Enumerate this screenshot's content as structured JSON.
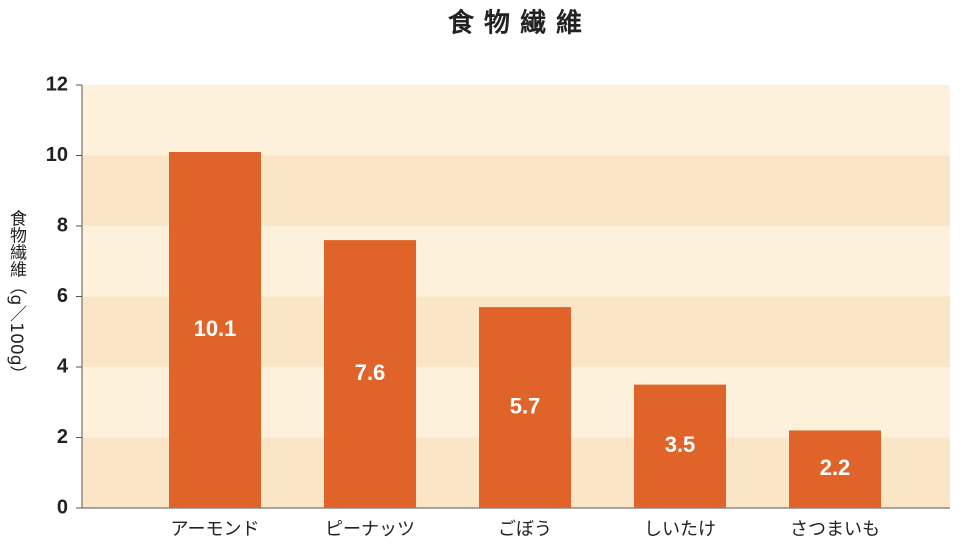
{
  "chart_data": {
    "type": "bar",
    "title": "食物繊維",
    "y_label": "食物繊維（g／100g）",
    "categories": [
      "アーモンド",
      "ピーナッツ",
      "ごぼう",
      "しいたけ",
      "さつまいも"
    ],
    "values": [
      10.1,
      7.6,
      5.7,
      3.5,
      2.2
    ],
    "color": "#e0642a",
    "ylim": [
      0,
      12
    ],
    "yticks": [
      0,
      2,
      4,
      6,
      8,
      10,
      12
    ]
  }
}
